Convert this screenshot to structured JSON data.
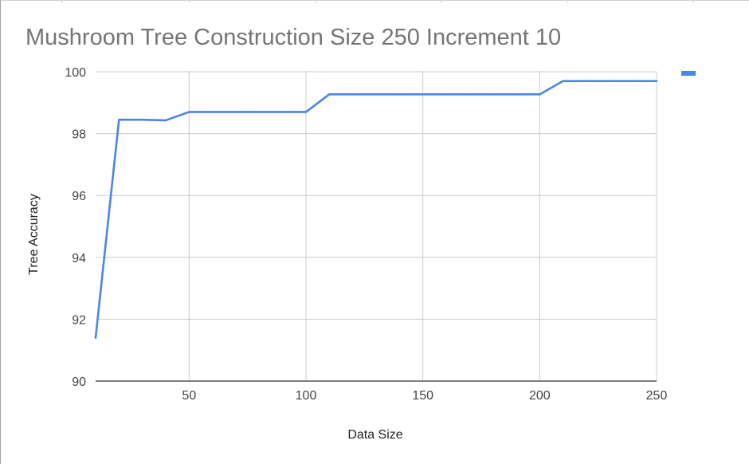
{
  "chart_data": {
    "type": "line",
    "title": "Mushroom Tree Construction Size 250 Increment 10",
    "xlabel": "Data Size",
    "ylabel": "Tree Accuracy",
    "xlim": [
      10,
      250
    ],
    "ylim": [
      90,
      100
    ],
    "x_ticks": [
      50,
      100,
      150,
      200,
      250
    ],
    "y_ticks": [
      90,
      92,
      94,
      96,
      98,
      100
    ],
    "grid": true,
    "legend_position": "top-right",
    "series": [
      {
        "color": "#4a86e8",
        "x": [
          10,
          20,
          30,
          40,
          50,
          60,
          70,
          80,
          90,
          100,
          110,
          120,
          130,
          140,
          150,
          160,
          170,
          180,
          190,
          200,
          210,
          220,
          230,
          240,
          250
        ],
        "y": [
          91.4,
          98.45,
          98.45,
          98.43,
          98.7,
          98.7,
          98.7,
          98.7,
          98.7,
          98.7,
          99.27,
          99.27,
          99.27,
          99.27,
          99.27,
          99.27,
          99.27,
          99.27,
          99.27,
          99.27,
          99.7,
          99.7,
          99.7,
          99.7,
          99.7
        ]
      }
    ]
  }
}
